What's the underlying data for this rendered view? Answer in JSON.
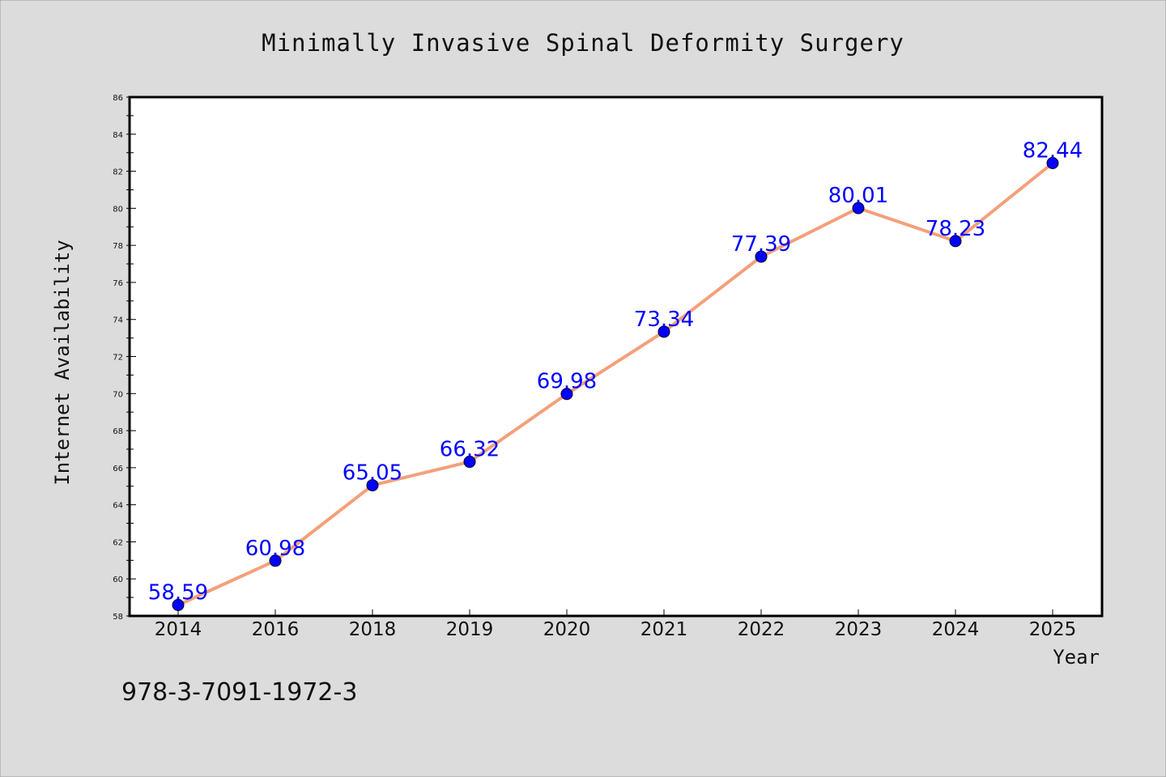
{
  "chart_data": {
    "type": "line",
    "title": "Minimally Invasive Spinal Deformity Surgery",
    "xlabel": "Year",
    "ylabel": "Internet Availability",
    "categories": [
      "2014",
      "2016",
      "2018",
      "2019",
      "2020",
      "2021",
      "2022",
      "2023",
      "2024",
      "2025"
    ],
    "values": [
      58.59,
      60.98,
      65.05,
      66.32,
      69.98,
      73.34,
      77.39,
      80.01,
      78.23,
      82.44
    ],
    "ylim": [
      58,
      86
    ],
    "yticks": [
      58,
      60,
      62,
      64,
      66,
      68,
      70,
      72,
      74,
      76,
      78,
      80,
      82,
      84,
      86
    ],
    "grid": false,
    "legend": "none",
    "data_labels": true
  },
  "footer": {
    "code": "978-3-7091-1972-3"
  },
  "colors": {
    "background": "#dcdcdc",
    "plot_area": "#ffffff",
    "line": "#f4a07a",
    "marker": "#0000ff",
    "data_label": "#0000ff"
  }
}
